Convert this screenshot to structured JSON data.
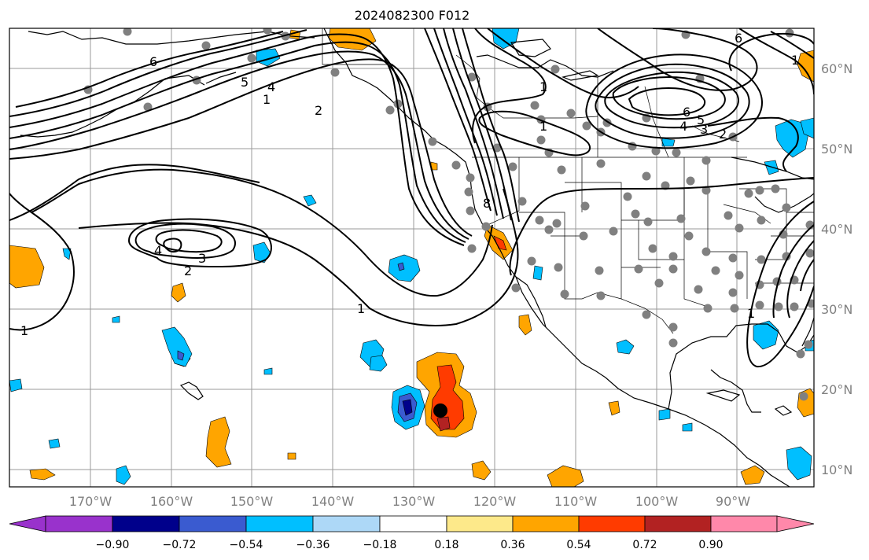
{
  "title": "2024082300 F012",
  "lon_ticks": [
    "170°W",
    "160°W",
    "150°W",
    "140°W",
    "130°W",
    "120°W",
    "110°W",
    "100°W",
    "90°W"
  ],
  "lat_ticks": [
    "60°N",
    "50°N",
    "40°N",
    "30°N",
    "20°N",
    "10°N"
  ],
  "colorbar": {
    "ticks": [
      "−0.90",
      "−0.72",
      "−0.54",
      "−0.36",
      "−0.18",
      "0.18",
      "0.36",
      "0.54",
      "0.72",
      "0.90"
    ],
    "colors": [
      "#9932cc",
      "#00008b",
      "#3a5bd0",
      "#00bfff",
      "#add8f7",
      "#ffffff",
      "#fde98a",
      "#ffa500",
      "#ff3b00",
      "#b22222",
      "#ff88aa"
    ]
  },
  "contour_labels": [
    {
      "text": "6"
    },
    {
      "text": "5"
    },
    {
      "text": "4"
    },
    {
      "text": "1"
    },
    {
      "text": "2"
    },
    {
      "text": "4"
    },
    {
      "text": "3"
    },
    {
      "text": "2"
    },
    {
      "text": "1"
    },
    {
      "text": "1"
    },
    {
      "text": "8"
    },
    {
      "text": "1"
    },
    {
      "text": "1"
    },
    {
      "text": "6"
    },
    {
      "text": "5"
    },
    {
      "text": "4"
    },
    {
      "text": "3"
    },
    {
      "text": "2"
    },
    {
      "text": "1"
    },
    {
      "text": "6"
    },
    {
      "text": "1"
    }
  ]
}
